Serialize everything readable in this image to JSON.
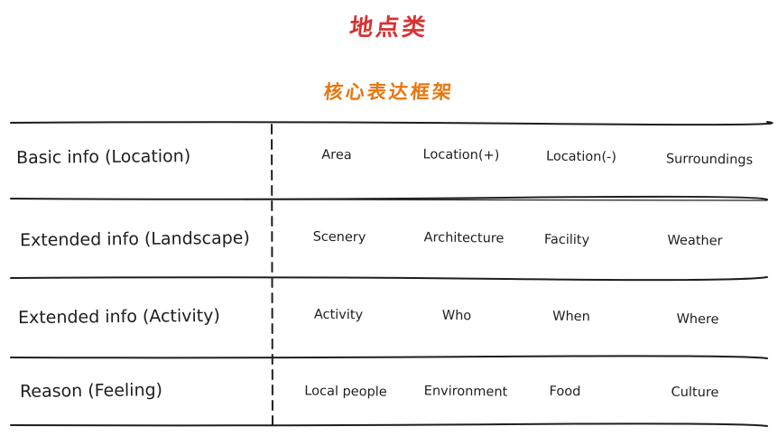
{
  "title": "地点类",
  "subtitle": "核心表达框架",
  "colors": {
    "title": "#d63331",
    "subtitle": "#e8760e",
    "ink": "#1e1e1e"
  },
  "rows": [
    {
      "label": "Basic info (Location)",
      "items": [
        "Area",
        "Location(+)",
        "Location(-)",
        "Surroundings"
      ]
    },
    {
      "label": "Extended info (Landscape)",
      "items": [
        "Scenery",
        "Architecture",
        "Facility",
        "Weather"
      ]
    },
    {
      "label": "Extended info (Activity)",
      "items": [
        "Activity",
        "Who",
        "When",
        "Where"
      ]
    },
    {
      "label": "Reason (Feeling)",
      "items": [
        "Local people",
        "Environment",
        "Food",
        "Culture"
      ]
    }
  ]
}
